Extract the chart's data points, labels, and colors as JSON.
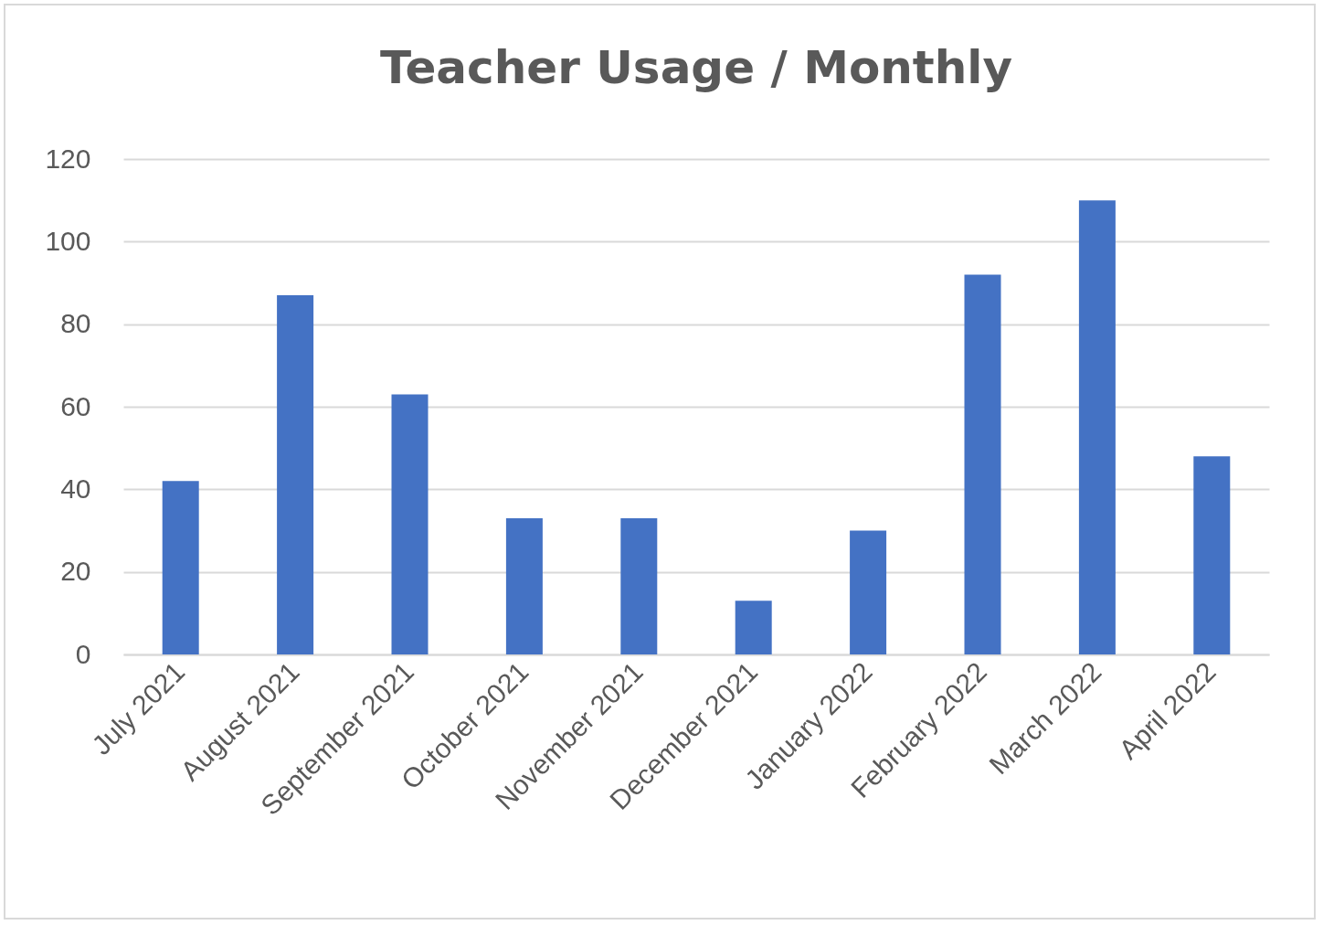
{
  "chart_data": {
    "type": "bar",
    "title": "Teacher Usage / Monthly",
    "categories": [
      "July 2021",
      "August 2021",
      "September 2021",
      "October 2021",
      "November 2021",
      "December 2021",
      "January 2022",
      "February 2022",
      "March 2022",
      "April 2022"
    ],
    "values": [
      42,
      87,
      63,
      33,
      33,
      13,
      30,
      92,
      110,
      48
    ],
    "color": "#4472c4",
    "ylim": [
      0,
      120
    ],
    "yticks": [
      0,
      20,
      40,
      60,
      80,
      100,
      120
    ],
    "grid": "y"
  }
}
